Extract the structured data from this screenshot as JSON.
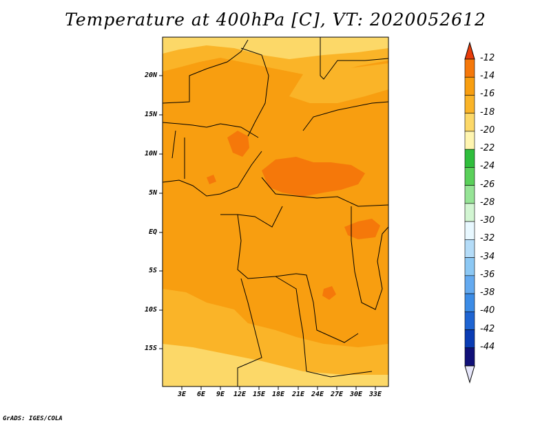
{
  "title": "Temperature at 400hPa [C], VT: 2020052612",
  "credit": "GrADS: IGES/COLA",
  "lat_labels": [
    "20N",
    "15N",
    "10N",
    "5N",
    "EQ",
    "5S",
    "10S",
    "15S"
  ],
  "lon_labels": [
    "3E",
    "6E",
    "9E",
    "12E",
    "15E",
    "18E",
    "21E",
    "24E",
    "27E",
    "30E",
    "33E"
  ],
  "colorbar": {
    "labels": [
      "-12",
      "-14",
      "-16",
      "-18",
      "-20",
      "-22",
      "-24",
      "-26",
      "-28",
      "-30",
      "-32",
      "-34",
      "-36",
      "-38",
      "-40",
      "-42",
      "-44"
    ],
    "colors": [
      "#e83c0a",
      "#f5780a",
      "#f89e10",
      "#fab428",
      "#fcd868",
      "#fff5b0",
      "#2fbe3c",
      "#5ad05a",
      "#96e496",
      "#d2f5d2",
      "#e8f8ff",
      "#b4dcf8",
      "#8cc8f4",
      "#64aaf0",
      "#3c8ce6",
      "#1e64d2",
      "#0a3cb4",
      "#101078",
      "#e6e6fa"
    ]
  }
}
